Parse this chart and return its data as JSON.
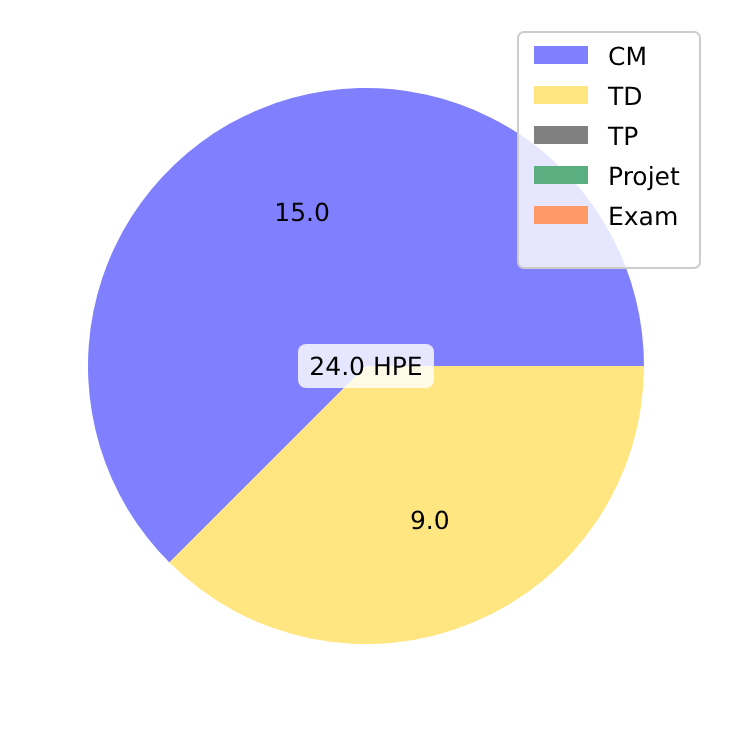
{
  "chart_data": {
    "type": "pie",
    "categories": [
      "CM",
      "TD",
      "TP",
      "Projet",
      "Exam"
    ],
    "values": [
      15,
      9,
      0,
      0,
      0
    ],
    "colors": [
      "#8080ff",
      "#ffe680",
      "#808080",
      "#5aae80",
      "#ff9966"
    ],
    "value_labels": [
      "15.0",
      "9.0",
      null,
      null,
      null
    ],
    "annotations": [
      "24.0 HPE"
    ],
    "legend": "top right"
  }
}
